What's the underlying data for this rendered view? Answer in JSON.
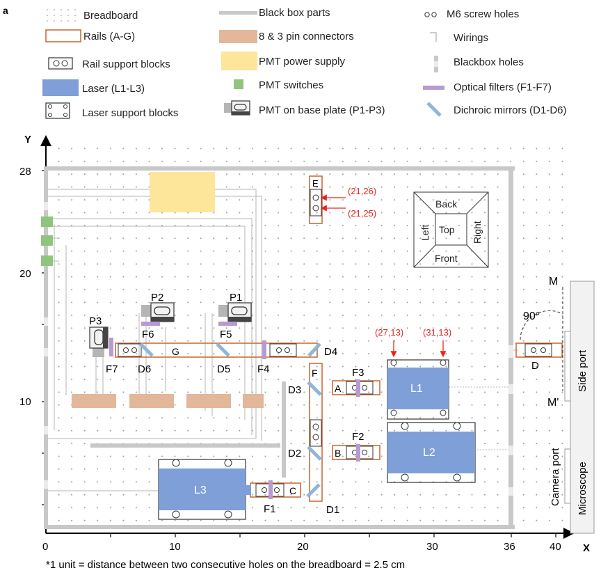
{
  "panel_label": "a",
  "legend": {
    "breadboard": "Breadboard",
    "rails": "Rails (A-G)",
    "rail_support": "Rail support blocks",
    "laser": "Laser (L1-L3)",
    "laser_support": "Laser support blocks",
    "black_box_parts": "Black box parts",
    "connectors": "8 & 3 pin connectors",
    "pmt_power": "PMT  power supply",
    "pmt_switches": "PMT  switches",
    "pmt_base": "PMT  on base plate (P1-P3)",
    "screw_holes": "M6  screw holes",
    "wirings": "Wirings",
    "blackbox_holes": "Blackbox holes",
    "optical_filters": "Optical filters (F1-F7)",
    "dichroic_mirrors": "Dichroic mirrors (D1-D6)"
  },
  "axes": {
    "x_label": "X",
    "y_label": "Y",
    "x_ticks": [
      "0",
      "10",
      "20",
      "30",
      "36",
      "40"
    ],
    "y_ticks": [
      "10",
      "20",
      "28"
    ]
  },
  "labels": {
    "lasers": {
      "l1": "L1",
      "l2": "L2",
      "l3": "L3"
    },
    "rails": {
      "a": "A",
      "b": "B",
      "c": "C",
      "d": "D",
      "e": "E",
      "f": "F",
      "g": "G"
    },
    "filters": {
      "f1": "F1",
      "f2": "F2",
      "f3": "F3",
      "f4": "F4",
      "f5": "F5",
      "f6": "F6",
      "f7": "F7"
    },
    "mirrors": {
      "d1": "D1",
      "d2": "D2",
      "d3": "D3",
      "d4": "D4",
      "d5": "D5",
      "d6": "D6"
    },
    "pmts": {
      "p1": "P1",
      "p2": "P2",
      "p3": "P3"
    },
    "coords": {
      "c1": "(21,26)",
      "c2": "(21,25)",
      "c3": "(27,13)",
      "c4": "(31,13)"
    },
    "cube": {
      "back": "Back",
      "front": "Front",
      "left": "Left",
      "right": "Right",
      "top": "Top"
    },
    "microscope": {
      "name": "Microscope",
      "side_port": "Side port",
      "camera_port": "Camera port",
      "m": "M",
      "m_prime": "M'",
      "angle": "90°"
    }
  },
  "footnote": "*1 unit = distance between two consecutive holes on the breadboard  = 2.5 cm",
  "colors": {
    "rail": "#c8642d",
    "laser": "#7f9fd8",
    "connector": "#e2b79a",
    "power": "#fde59a",
    "switch": "#8fc47d",
    "filter": "#b89ad2",
    "mirror": "#8fb6d8",
    "blackbox": "#c8c8c8",
    "coord": "#e8251f"
  }
}
